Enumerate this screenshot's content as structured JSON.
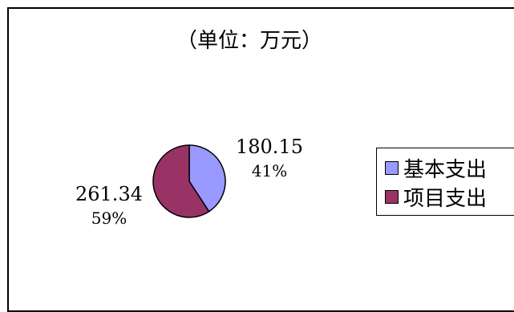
{
  "chart_data": {
    "type": "pie",
    "title": "（单位：万元）",
    "slices": [
      {
        "name": "基本支出",
        "value": 180.15,
        "value_label": "180.15",
        "percent_label": "41%",
        "color": "#9999ff"
      },
      {
        "name": "项目支出",
        "value": 261.34,
        "value_label": "261.34",
        "percent_label": "59%",
        "color": "#993366"
      }
    ],
    "legend_position": "right"
  }
}
